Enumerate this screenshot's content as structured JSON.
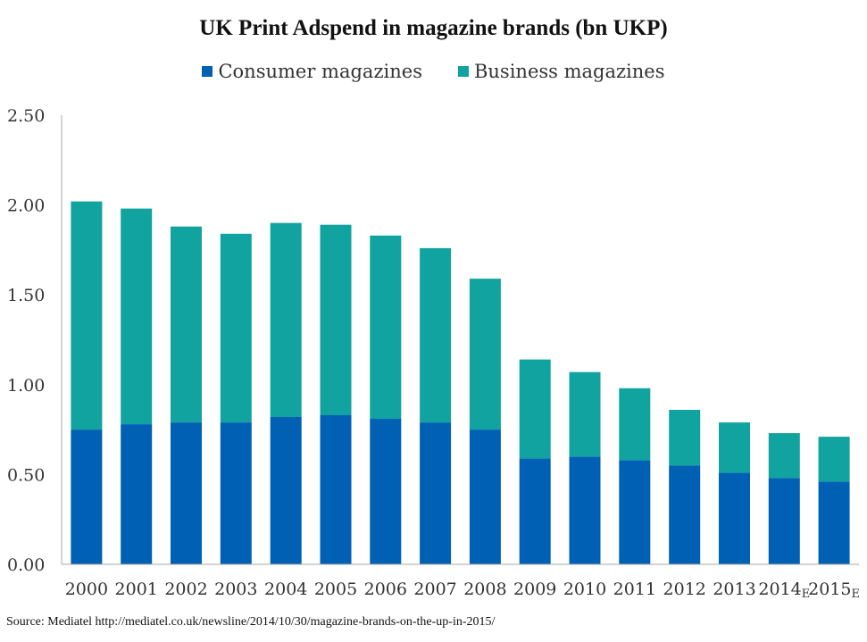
{
  "chart_data": {
    "type": "bar",
    "stacked": true,
    "title": "UK Print Adspend in magazine brands (bn UKP)",
    "xlabel": "",
    "ylabel": "",
    "ylim": [
      0,
      2.5
    ],
    "yticks": [
      "0.00",
      "0.50",
      "1.00",
      "1.50",
      "2.00",
      "2.50"
    ],
    "categories": [
      {
        "year": "2000",
        "suffix": ""
      },
      {
        "year": "2001",
        "suffix": ""
      },
      {
        "year": "2002",
        "suffix": ""
      },
      {
        "year": "2003",
        "suffix": ""
      },
      {
        "year": "2004",
        "suffix": ""
      },
      {
        "year": "2005",
        "suffix": ""
      },
      {
        "year": "2006",
        "suffix": ""
      },
      {
        "year": "2007",
        "suffix": ""
      },
      {
        "year": "2008",
        "suffix": ""
      },
      {
        "year": "2009",
        "suffix": ""
      },
      {
        "year": "2010",
        "suffix": ""
      },
      {
        "year": "2011",
        "suffix": ""
      },
      {
        "year": "2012",
        "suffix": ""
      },
      {
        "year": "2013",
        "suffix": ""
      },
      {
        "year": "2014",
        "suffix": "E"
      },
      {
        "year": "2015",
        "suffix": "E"
      }
    ],
    "series": [
      {
        "name": "Consumer magazines",
        "color": "#0060b4",
        "values": [
          0.75,
          0.78,
          0.79,
          0.79,
          0.82,
          0.83,
          0.81,
          0.79,
          0.75,
          0.59,
          0.6,
          0.58,
          0.55,
          0.51,
          0.48,
          0.46
        ]
      },
      {
        "name": "Business magazines",
        "color": "#11a3a0",
        "values": [
          1.27,
          1.2,
          1.09,
          1.05,
          1.08,
          1.06,
          1.02,
          0.97,
          0.84,
          0.55,
          0.47,
          0.4,
          0.31,
          0.28,
          0.25,
          0.25
        ]
      }
    ],
    "legend_position": "top-center",
    "grid": false
  },
  "source": "Source: Mediatel http://mediatel.co.uk/newsline/2014/10/30/magazine-brands-on-the-up-in-2015/"
}
